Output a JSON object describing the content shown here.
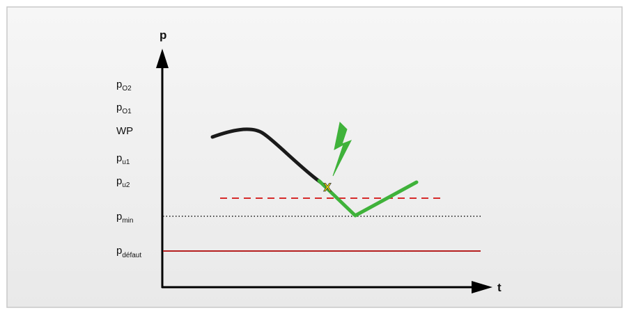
{
  "axes": {
    "y_label": "p",
    "x_label": "t"
  },
  "levels": [
    {
      "id": "po2",
      "main": "p",
      "sub": "O2"
    },
    {
      "id": "po1",
      "main": "p",
      "sub": "O1"
    },
    {
      "id": "wp",
      "main": "WP",
      "sub": ""
    },
    {
      "id": "pu1",
      "main": "p",
      "sub": "u1"
    },
    {
      "id": "pu2",
      "main": "p",
      "sub": "u2"
    },
    {
      "id": "pmin",
      "main": "p",
      "sub": "min"
    },
    {
      "id": "pdefaut",
      "main": "p",
      "sub": "défaut"
    }
  ],
  "marker": {
    "label": "X"
  },
  "colors": {
    "background": "#eeeeee",
    "border": "#c8c8c8",
    "axis": "#000000",
    "pressure_curve": "#1a1a1a",
    "recovery_curve": "#3fb23a",
    "lightning": "#3fb23a",
    "dashed_threshold": "#d62a2a",
    "dotted_threshold": "#111111",
    "fault_line": "#b51f1f",
    "marker_fill": "#f2e600"
  },
  "icons": {
    "lightning": "lightning-bolt-icon"
  }
}
